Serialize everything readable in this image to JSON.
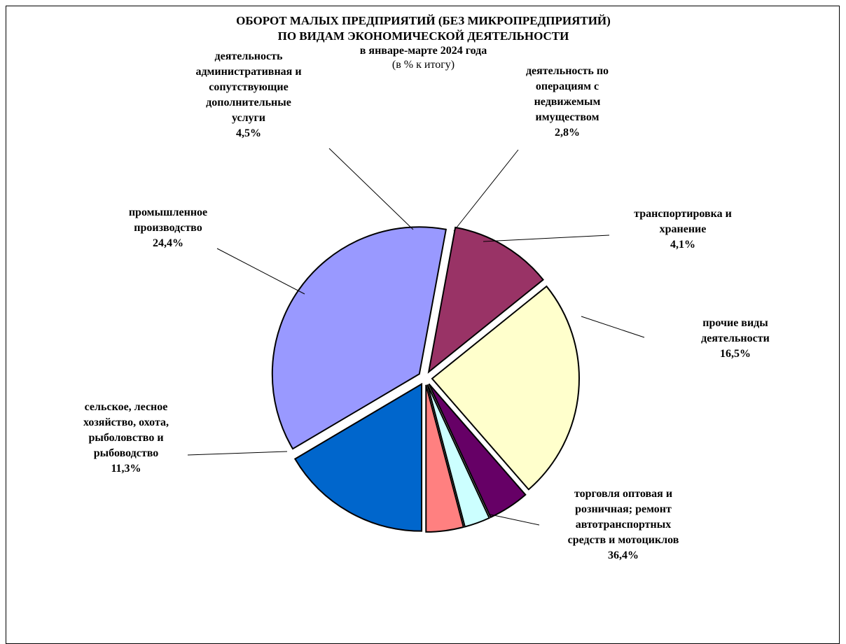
{
  "chart_data": {
    "type": "pie",
    "title": "ОБОРОТ МАЛЫХ ПРЕДПРИЯТИЙ (БЕЗ МИКРОПРЕДПРИЯТИЙ)",
    "title_line2": "ПО ВИДАМ ЭКОНОМИЧЕСКОЙ ДЕЯТЕЛЬНОСТИ",
    "subtitle": "в январе-марте 2024 года",
    "unit": "(в % к итогу)",
    "slices": [
      {
        "label_lines": [
          "прочие виды",
          "деятельности"
        ],
        "value": 16.5,
        "value_label": "16,5%",
        "color": "#0066CC"
      },
      {
        "label_lines": [
          "торговля оптовая и",
          "розничная; ремонт",
          "автотранспортных",
          "средств и мотоциклов"
        ],
        "value": 36.4,
        "value_label": "36,4%",
        "color": "#9999FF"
      },
      {
        "label_lines": [
          "сельское, лесное",
          "хозяйство, охота,",
          "рыболовство и",
          "рыбоводство"
        ],
        "value": 11.3,
        "value_label": "11,3%",
        "color": "#993366"
      },
      {
        "label_lines": [
          "промышленное",
          "производство"
        ],
        "value": 24.4,
        "value_label": "24,4%",
        "color": "#FFFFCC"
      },
      {
        "label_lines": [
          "деятельность",
          "административная и",
          "сопутствующие",
          "дополнительные",
          "услуги"
        ],
        "value": 4.5,
        "value_label": "4,5%",
        "color": "#660066"
      },
      {
        "label_lines": [
          "деятельность по",
          "операциям с",
          "недвижемым",
          "имуществом"
        ],
        "value": 2.8,
        "value_label": "2,8%",
        "color": "#CCFFFF"
      },
      {
        "label_lines": [
          "транспортировка и",
          "хранение"
        ],
        "value": 4.1,
        "value_label": "4,1%",
        "color": "#FF8080"
      }
    ]
  }
}
